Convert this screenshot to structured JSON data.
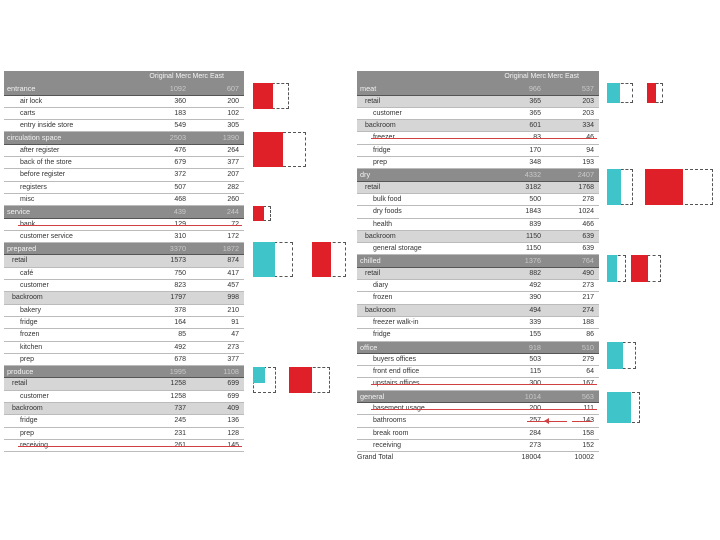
{
  "left": {
    "headers": [
      "Original Merc",
      "Merc East"
    ],
    "rows": [
      {
        "type": "sec",
        "label": "entrance",
        "v1": "1092",
        "v2": "607"
      },
      {
        "type": "item",
        "label": "air lock",
        "v1": "360",
        "v2": "200"
      },
      {
        "type": "item",
        "label": "carts",
        "v1": "183",
        "v2": "102"
      },
      {
        "type": "item",
        "label": "entry inside store",
        "v1": "549",
        "v2": "305"
      },
      {
        "type": "sec",
        "label": "circulation space",
        "v1": "2503",
        "v2": "1390"
      },
      {
        "type": "item",
        "label": "after register",
        "v1": "476",
        "v2": "264"
      },
      {
        "type": "item",
        "label": "back of the store",
        "v1": "679",
        "v2": "377"
      },
      {
        "type": "item",
        "label": "before register",
        "v1": "372",
        "v2": "207"
      },
      {
        "type": "item",
        "label": "registers",
        "v1": "507",
        "v2": "282"
      },
      {
        "type": "item",
        "label": "misc",
        "v1": "468",
        "v2": "260"
      },
      {
        "type": "sec",
        "label": "service",
        "v1": "439",
        "v2": "244"
      },
      {
        "type": "item",
        "label": "bank",
        "v1": "129",
        "v2": "72",
        "strike": true
      },
      {
        "type": "item",
        "label": "customer service",
        "v1": "310",
        "v2": "172"
      },
      {
        "type": "sec",
        "label": "prepared",
        "v1": "3370",
        "v2": "1872"
      },
      {
        "type": "sub",
        "label": "retail",
        "v1": "1573",
        "v2": "874"
      },
      {
        "type": "item2",
        "label": "café",
        "v1": "750",
        "v2": "417"
      },
      {
        "type": "item2",
        "label": "customer",
        "v1": "823",
        "v2": "457"
      },
      {
        "type": "sub",
        "label": "backroom",
        "v1": "1797",
        "v2": "998"
      },
      {
        "type": "item2",
        "label": "bakery",
        "v1": "378",
        "v2": "210"
      },
      {
        "type": "item2",
        "label": "fridge",
        "v1": "164",
        "v2": "91"
      },
      {
        "type": "item2",
        "label": "frozen",
        "v1": "85",
        "v2": "47"
      },
      {
        "type": "item2",
        "label": "kitchen",
        "v1": "492",
        "v2": "273"
      },
      {
        "type": "item2",
        "label": "prep",
        "v1": "678",
        "v2": "377"
      },
      {
        "type": "sec",
        "label": "produce",
        "v1": "1995",
        "v2": "1108"
      },
      {
        "type": "sub",
        "label": "retail",
        "v1": "1258",
        "v2": "699"
      },
      {
        "type": "item2",
        "label": "customer",
        "v1": "1258",
        "v2": "699"
      },
      {
        "type": "sub",
        "label": "backroom",
        "v1": "737",
        "v2": "409"
      },
      {
        "type": "item2",
        "label": "fridge",
        "v1": "245",
        "v2": "136"
      },
      {
        "type": "item2",
        "label": "prep",
        "v1": "231",
        "v2": "128"
      },
      {
        "type": "item2",
        "label": "receiving",
        "v1": "261",
        "v2": "145",
        "strike": true
      }
    ]
  },
  "right": {
    "headers": [
      "Original Merc",
      "Merc East"
    ],
    "rows": [
      {
        "type": "sec",
        "label": "meat",
        "v1": "966",
        "v2": "537"
      },
      {
        "type": "sub",
        "label": "retail",
        "v1": "365",
        "v2": "203"
      },
      {
        "type": "item2",
        "label": "customer",
        "v1": "365",
        "v2": "203"
      },
      {
        "type": "sub",
        "label": "backroom",
        "v1": "601",
        "v2": "334"
      },
      {
        "type": "item2",
        "label": "freezer",
        "v1": "83",
        "v2": "46",
        "strike": true
      },
      {
        "type": "item2",
        "label": "fridge",
        "v1": "170",
        "v2": "94"
      },
      {
        "type": "item2",
        "label": "prep",
        "v1": "348",
        "v2": "193"
      },
      {
        "type": "sec",
        "label": "dry",
        "v1": "4332",
        "v2": "2407"
      },
      {
        "type": "sub",
        "label": "retail",
        "v1": "3182",
        "v2": "1768"
      },
      {
        "type": "item2",
        "label": "bulk food",
        "v1": "500",
        "v2": "278"
      },
      {
        "type": "item2",
        "label": "dry foods",
        "v1": "1843",
        "v2": "1024"
      },
      {
        "type": "item2",
        "label": "health",
        "v1": "839",
        "v2": "466"
      },
      {
        "type": "sub",
        "label": "backroom",
        "v1": "1150",
        "v2": "639"
      },
      {
        "type": "item2",
        "label": "general storage",
        "v1": "1150",
        "v2": "639"
      },
      {
        "type": "sec",
        "label": "chilled",
        "v1": "1376",
        "v2": "764"
      },
      {
        "type": "sub",
        "label": "retail",
        "v1": "882",
        "v2": "490"
      },
      {
        "type": "item2",
        "label": "diary",
        "v1": "492",
        "v2": "273"
      },
      {
        "type": "item2",
        "label": "frozen",
        "v1": "390",
        "v2": "217"
      },
      {
        "type": "sub",
        "label": "backroom",
        "v1": "494",
        "v2": "274"
      },
      {
        "type": "item2",
        "label": "freezer walk-in",
        "v1": "339",
        "v2": "188"
      },
      {
        "type": "item2",
        "label": "fridge",
        "v1": "155",
        "v2": "86"
      },
      {
        "type": "sec",
        "label": "office",
        "v1": "918",
        "v2": "510"
      },
      {
        "type": "item2",
        "label": "buyers offices",
        "v1": "503",
        "v2": "279"
      },
      {
        "type": "item2",
        "label": "front end office",
        "v1": "115",
        "v2": "64"
      },
      {
        "type": "item2",
        "label": "upstairs offices",
        "v1": "300",
        "v2": "167",
        "strike": true
      },
      {
        "type": "sec",
        "label": "general",
        "v1": "1014",
        "v2": "563"
      },
      {
        "type": "item2",
        "label": "basement usage",
        "v1": "200",
        "v2": "111",
        "strike": true
      },
      {
        "type": "item2",
        "label": "bathrooms",
        "v1": "257",
        "v2": "143",
        "arrow": true
      },
      {
        "type": "item2",
        "label": "break room",
        "v1": "284",
        "v2": "158"
      },
      {
        "type": "item2",
        "label": "receiving",
        "v1": "273",
        "v2": "152"
      }
    ],
    "grand_total": {
      "label": "Grand Total",
      "v1": "18004",
      "v2": "10002"
    }
  },
  "colors": {
    "section": "#8c8c8c",
    "subsection": "#d6d6d6",
    "red": "#e02029",
    "cyan": "#3fc4c9",
    "strike": "#d04040"
  }
}
